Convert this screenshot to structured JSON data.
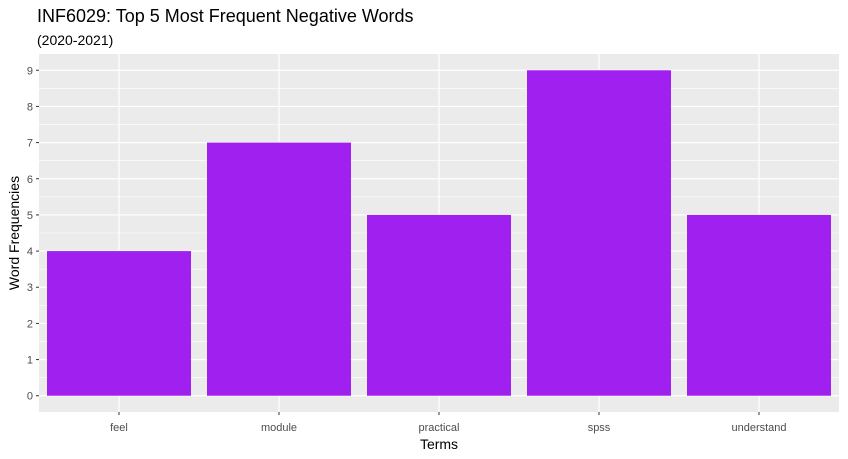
{
  "chart_data": {
    "type": "bar",
    "title": "INF6029: Top 5 Most Frequent Negative Words",
    "subtitle": "(2020-2021)",
    "xlabel": "Terms",
    "ylabel": "Word Frequencies",
    "categories": [
      "feel",
      "module",
      "practical",
      "spss",
      "understand"
    ],
    "values": [
      4,
      7,
      5,
      9,
      5
    ],
    "ylim": [
      -0.45,
      9.45
    ],
    "yticks": [
      0,
      1,
      2,
      3,
      4,
      5,
      6,
      7,
      8,
      9
    ],
    "grid": true,
    "bar_color": "#A020F0",
    "panel_color": "#EBEBEB",
    "grid_color": "#FFFFFF"
  }
}
